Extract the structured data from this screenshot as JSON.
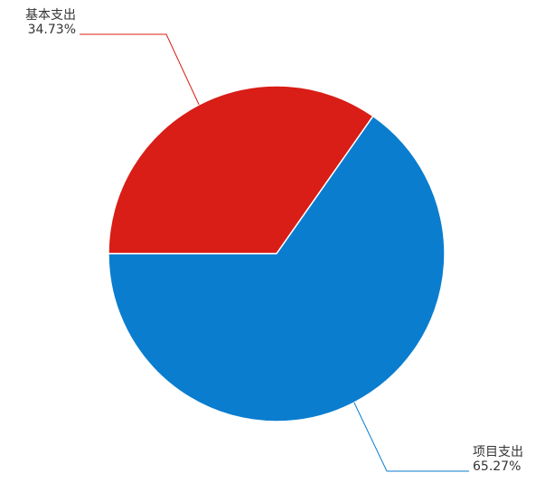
{
  "chart_data": {
    "type": "pie",
    "slices": [
      {
        "label": "基本支出",
        "value": 34.73,
        "value_label": "34.73%",
        "color": "#d81e16"
      },
      {
        "label": "项目支出",
        "value": 65.27,
        "value_label": "65.27%",
        "color": "#0a7dcf"
      }
    ],
    "legend": "none"
  }
}
